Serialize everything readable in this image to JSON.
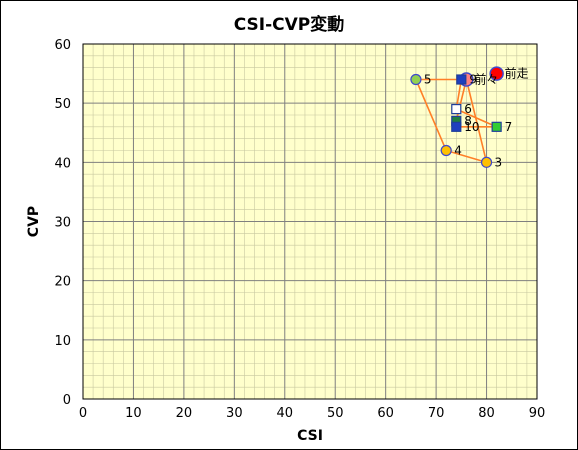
{
  "chart_data": {
    "type": "scatter",
    "title": "CSI-CVP変動",
    "xlabel": "CSI",
    "ylabel": "CVP",
    "xlim": [
      0,
      90
    ],
    "ylim": [
      0,
      60
    ],
    "x_ticks": [
      "0",
      "10",
      "20",
      "30",
      "40",
      "50",
      "60",
      "70",
      "80",
      "90"
    ],
    "y_ticks": [
      "0",
      "10",
      "20",
      "30",
      "40",
      "50",
      "60"
    ],
    "grid": true,
    "colors": {
      "plot_bg": "#ffffcc",
      "major_grid": "#7f7f7f",
      "minor_grid": "#c8c8a0",
      "line": "#ff7f27"
    },
    "path_order": [
      "前々",
      "3",
      "4",
      "5",
      "9",
      "6",
      "7",
      "10",
      "8",
      "前々"
    ],
    "points": [
      {
        "label": "前走",
        "x": 82,
        "y": 55,
        "marker": "circle-large",
        "fill": "#ff0000",
        "stroke": "#3f48cc"
      },
      {
        "label": "前々",
        "x": 76,
        "y": 54,
        "marker": "circle-large",
        "fill": "#ff8080",
        "stroke": "#3f48cc"
      },
      {
        "label": "3",
        "x": 80,
        "y": 40,
        "marker": "circle",
        "fill": "#ffc000",
        "stroke": "#3f48cc"
      },
      {
        "label": "4",
        "x": 72,
        "y": 42,
        "marker": "circle",
        "fill": "#ffc000",
        "stroke": "#3f48cc"
      },
      {
        "label": "5",
        "x": 66,
        "y": 54,
        "marker": "circle",
        "fill": "#92d050",
        "stroke": "#3f48cc"
      },
      {
        "label": "6",
        "x": 74,
        "y": 49,
        "marker": "square",
        "fill": "#ffffff",
        "stroke": "#1f3f99"
      },
      {
        "label": "7",
        "x": 82,
        "y": 46,
        "marker": "square",
        "fill": "#33cc33",
        "stroke": "#1f3f99"
      },
      {
        "label": "8",
        "x": 74,
        "y": 47,
        "marker": "square",
        "fill": "#1f7f3f",
        "stroke": "#1f3f99"
      },
      {
        "label": "9",
        "x": 75,
        "y": 54,
        "marker": "square",
        "fill": "#1f3fbf",
        "stroke": "#1f3f99"
      },
      {
        "label": "10",
        "x": 74,
        "y": 46,
        "marker": "square",
        "fill": "#1f3fbf",
        "stroke": "#1f3f99"
      }
    ]
  }
}
